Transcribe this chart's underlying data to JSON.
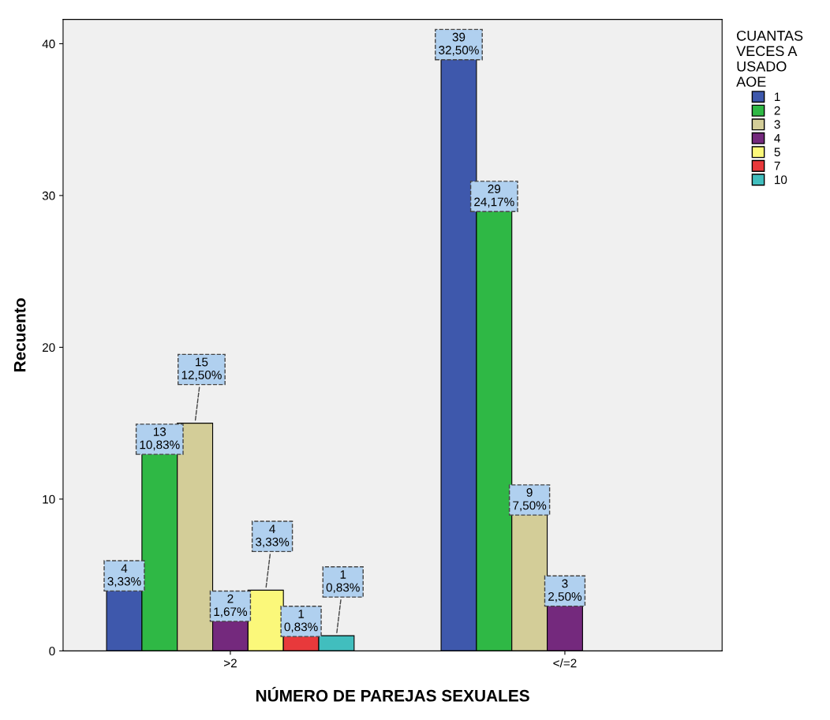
{
  "chart_data": {
    "type": "bar",
    "xlabel": "NÚMERO DE PAREJAS SEXUALES",
    "ylabel": "Recuento",
    "legend_title": "CUANTAS\nVECES A\nUSADO\nAOE",
    "categories": [
      ">2",
      "</=2"
    ],
    "ylim": [
      0,
      41.6
    ],
    "yticks": [
      0,
      10,
      20,
      30,
      40
    ],
    "grid": false,
    "legend": "right",
    "series": [
      {
        "name": "1",
        "color": "#3e58ac",
        "values": [
          4,
          39
        ],
        "value_labels": [
          "4\n3,33%",
          "39\n32,50%"
        ]
      },
      {
        "name": "2",
        "color": "#2fb845",
        "values": [
          13,
          29
        ],
        "value_labels": [
          "13\n10,83%",
          "29\n24,17%"
        ]
      },
      {
        "name": "3",
        "color": "#d3cd98",
        "values": [
          15,
          9
        ],
        "value_labels": [
          "15\n12,50%",
          "9\n7,50%"
        ]
      },
      {
        "name": "4",
        "color": "#74297d",
        "values": [
          2,
          3
        ],
        "value_labels": [
          "2\n1,67%",
          "3\n2,50%"
        ]
      },
      {
        "name": "5",
        "color": "#fbf87a",
        "values": [
          4,
          null
        ],
        "value_labels": [
          "4\n3,33%",
          null
        ]
      },
      {
        "name": "7",
        "color": "#e8393b",
        "values": [
          1,
          null
        ],
        "value_labels": [
          "1\n0,83%",
          null
        ]
      },
      {
        "name": "10",
        "color": "#41bebe",
        "values": [
          1,
          null
        ],
        "value_labels": [
          "1\n0,83%",
          null
        ]
      }
    ]
  }
}
